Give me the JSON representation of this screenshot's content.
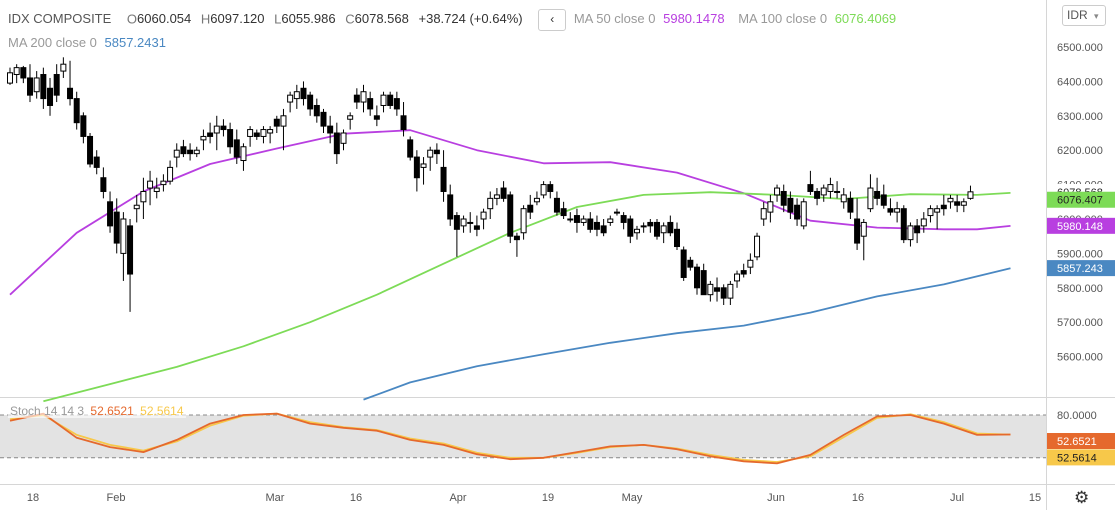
{
  "header": {
    "symbol": "IDX COMPOSITE",
    "open_k": "O",
    "open": "6060.054",
    "high_k": "H",
    "high": "6097.120",
    "low_k": "L",
    "low": "6055.986",
    "close_k": "C",
    "close": "6078.568",
    "change": "+38.724 (+0.64%)",
    "nav_icon": "chevron-left-icon",
    "nav_glyph": "‹",
    "ma50_label": "MA 50 close 0",
    "ma50_value": "5980.1478",
    "ma50_color": "#b83fe0",
    "ma100_label": "MA 100 close 0",
    "ma100_value": "6076.4069",
    "ma100_color": "#7ddb57",
    "ma200_label": "MA 200 close 0",
    "ma200_value": "5857.2431",
    "ma200_color": "#4a88c2"
  },
  "currency": "IDR",
  "stoch": {
    "label": "Stoch 14 14 3",
    "k_value": "52.6521",
    "k_color": "#e5692d",
    "d_value": "52.5614",
    "d_color": "#f7c84a"
  },
  "settings_icon": "gear-icon",
  "chart_data": [
    {
      "type": "candlestick",
      "title": "IDX COMPOSITE",
      "ylim": [
        5480,
        6560
      ],
      "y_ticks": [
        "6500.000",
        "6400.000",
        "6300.000",
        "6200.000",
        "6100.000",
        "6000.000",
        "5900.000",
        "5800.000",
        "5700.000",
        "5600.000"
      ],
      "x_ticks": [
        "18",
        "Feb",
        "Mar",
        "16",
        "Apr",
        "19",
        "May",
        "Jun",
        "16",
        "Jul",
        "15"
      ],
      "last_price": "6078.568",
      "candles_ohlc": [
        [
          6395,
          6440,
          6390,
          6425
        ],
        [
          6420,
          6450,
          6395,
          6440
        ],
        [
          6440,
          6445,
          6395,
          6410
        ],
        [
          6410,
          6450,
          6340,
          6360
        ],
        [
          6370,
          6430,
          6350,
          6410
        ],
        [
          6420,
          6440,
          6320,
          6350
        ],
        [
          6380,
          6410,
          6300,
          6330
        ],
        [
          6420,
          6450,
          6340,
          6360
        ],
        [
          6430,
          6470,
          6410,
          6450
        ],
        [
          6380,
          6460,
          6330,
          6350
        ],
        [
          6350,
          6370,
          6260,
          6280
        ],
        [
          6300,
          6310,
          6220,
          6240
        ],
        [
          6240,
          6250,
          6150,
          6160
        ],
        [
          6180,
          6200,
          6130,
          6150
        ],
        [
          6120,
          6150,
          6060,
          6080
        ],
        [
          6050,
          6080,
          5960,
          5980
        ],
        [
          6020,
          6060,
          5900,
          5930
        ],
        [
          5900,
          6020,
          5820,
          6000
        ],
        [
          5980,
          6000,
          5730,
          5840
        ],
        [
          6030,
          6070,
          5990,
          6040
        ],
        [
          6050,
          6120,
          6000,
          6080
        ],
        [
          6090,
          6140,
          6040,
          6110
        ],
        [
          6080,
          6120,
          6060,
          6090
        ],
        [
          6100,
          6130,
          6080,
          6110
        ],
        [
          6110,
          6170,
          6100,
          6150
        ],
        [
          6180,
          6220,
          6150,
          6200
        ],
        [
          6210,
          6230,
          6180,
          6190
        ],
        [
          6200,
          6220,
          6170,
          6190
        ],
        [
          6190,
          6210,
          6180,
          6200
        ],
        [
          6230,
          6260,
          6200,
          6240
        ],
        [
          6250,
          6280,
          6220,
          6240
        ],
        [
          6250,
          6300,
          6200,
          6270
        ],
        [
          6270,
          6290,
          6240,
          6260
        ],
        [
          6260,
          6280,
          6190,
          6210
        ],
        [
          6230,
          6260,
          6160,
          6180
        ],
        [
          6170,
          6220,
          6140,
          6210
        ],
        [
          6240,
          6270,
          6210,
          6260
        ],
        [
          6250,
          6260,
          6230,
          6240
        ],
        [
          6240,
          6270,
          6220,
          6260
        ],
        [
          6250,
          6270,
          6220,
          6260
        ],
        [
          6290,
          6300,
          6250,
          6270
        ],
        [
          6270,
          6320,
          6200,
          6300
        ],
        [
          6340,
          6370,
          6310,
          6360
        ],
        [
          6350,
          6390,
          6320,
          6370
        ],
        [
          6380,
          6400,
          6330,
          6350
        ],
        [
          6360,
          6370,
          6300,
          6320
        ],
        [
          6330,
          6350,
          6280,
          6300
        ],
        [
          6310,
          6320,
          6250,
          6270
        ],
        [
          6270,
          6300,
          6220,
          6250
        ],
        [
          6250,
          6280,
          6160,
          6190
        ],
        [
          6220,
          6260,
          6200,
          6250
        ],
        [
          6290,
          6310,
          6260,
          6300
        ],
        [
          6360,
          6380,
          6320,
          6340
        ],
        [
          6340,
          6390,
          6310,
          6370
        ],
        [
          6350,
          6370,
          6300,
          6320
        ],
        [
          6300,
          6330,
          6270,
          6290
        ],
        [
          6330,
          6370,
          6310,
          6360
        ],
        [
          6360,
          6370,
          6320,
          6330
        ],
        [
          6350,
          6370,
          6300,
          6320
        ],
        [
          6300,
          6340,
          6240,
          6260
        ],
        [
          6230,
          6240,
          6170,
          6180
        ],
        [
          6180,
          6200,
          6080,
          6120
        ],
        [
          6150,
          6180,
          6100,
          6160
        ],
        [
          6180,
          6210,
          6140,
          6200
        ],
        [
          6200,
          6220,
          6160,
          6190
        ],
        [
          6150,
          6200,
          6050,
          6080
        ],
        [
          6070,
          6100,
          5980,
          6000
        ],
        [
          6010,
          6020,
          5890,
          5970
        ],
        [
          5980,
          6010,
          5960,
          6000
        ],
        [
          5990,
          6020,
          5960,
          5990
        ],
        [
          5980,
          6010,
          5950,
          5970
        ],
        [
          6000,
          6030,
          5970,
          6020
        ],
        [
          6030,
          6080,
          6000,
          6060
        ],
        [
          6060,
          6090,
          6040,
          6070
        ],
        [
          6090,
          6110,
          6050,
          6060
        ],
        [
          6070,
          6080,
          5930,
          5950
        ],
        [
          5950,
          5960,
          5890,
          5940
        ],
        [
          5960,
          6040,
          5940,
          6030
        ],
        [
          6040,
          6070,
          6000,
          6020
        ],
        [
          6050,
          6080,
          6040,
          6060
        ],
        [
          6070,
          6110,
          6060,
          6100
        ],
        [
          6100,
          6110,
          6060,
          6080
        ],
        [
          6060,
          6080,
          6010,
          6020
        ],
        [
          6030,
          6050,
          6000,
          6010
        ],
        [
          6000,
          6020,
          5990,
          6000
        ],
        [
          6010,
          6030,
          5960,
          5990
        ],
        [
          5990,
          6010,
          5980,
          6000
        ],
        [
          6000,
          6020,
          5960,
          5970
        ],
        [
          5990,
          6010,
          5950,
          5970
        ],
        [
          5980,
          6000,
          5950,
          5960
        ],
        [
          5990,
          6010,
          5980,
          6000
        ],
        [
          6020,
          6030,
          6010,
          6020
        ],
        [
          6010,
          6020,
          5970,
          5990
        ],
        [
          6000,
          6010,
          5930,
          5950
        ],
        [
          5960,
          5980,
          5940,
          5970
        ],
        [
          5980,
          5990,
          5960,
          5980
        ],
        [
          5990,
          6000,
          5960,
          5980
        ],
        [
          5990,
          6000,
          5940,
          5950
        ],
        [
          5960,
          5990,
          5930,
          5980
        ],
        [
          5990,
          6010,
          5950,
          5960
        ],
        [
          5970,
          5990,
          5910,
          5920
        ],
        [
          5910,
          5920,
          5820,
          5830
        ],
        [
          5880,
          5890,
          5850,
          5860
        ],
        [
          5860,
          5870,
          5780,
          5800
        ],
        [
          5850,
          5870,
          5780,
          5780
        ],
        [
          5780,
          5820,
          5760,
          5810
        ],
        [
          5800,
          5830,
          5760,
          5790
        ],
        [
          5800,
          5810,
          5750,
          5770
        ],
        [
          5770,
          5820,
          5750,
          5810
        ],
        [
          5820,
          5850,
          5800,
          5840
        ],
        [
          5850,
          5870,
          5830,
          5840
        ],
        [
          5860,
          5900,
          5840,
          5880
        ],
        [
          5890,
          5960,
          5880,
          5950
        ],
        [
          6000,
          6050,
          5980,
          6030
        ],
        [
          6020,
          6070,
          5990,
          6050
        ],
        [
          6070,
          6100,
          6050,
          6090
        ],
        [
          6080,
          6100,
          6020,
          6040
        ],
        [
          6060,
          6080,
          6000,
          6020
        ],
        [
          6040,
          6060,
          5980,
          6000
        ],
        [
          5980,
          6060,
          5970,
          6050
        ],
        [
          6100,
          6140,
          6070,
          6080
        ],
        [
          6080,
          6090,
          6040,
          6060
        ],
        [
          6070,
          6100,
          6050,
          6090
        ],
        [
          6080,
          6120,
          6060,
          6100
        ],
        [
          6080,
          6110,
          6060,
          6080
        ],
        [
          6050,
          6090,
          6030,
          6070
        ],
        [
          6060,
          6080,
          6000,
          6020
        ],
        [
          6000,
          6060,
          5910,
          5930
        ],
        [
          5950,
          6000,
          5880,
          5990
        ],
        [
          6030,
          6130,
          6020,
          6090
        ],
        [
          6080,
          6120,
          6040,
          6060
        ],
        [
          6070,
          6100,
          6030,
          6040
        ],
        [
          6030,
          6060,
          6010,
          6020
        ],
        [
          6020,
          6050,
          5990,
          6030
        ],
        [
          6030,
          6040,
          5930,
          5940
        ],
        [
          5940,
          5990,
          5920,
          5980
        ],
        [
          5980,
          6000,
          5930,
          5960
        ],
        [
          5980,
          6020,
          5960,
          6000
        ],
        [
          6010,
          6040,
          5990,
          6030
        ],
        [
          6020,
          6040,
          5970,
          6030
        ],
        [
          6040,
          6070,
          6010,
          6030
        ],
        [
          6050,
          6070,
          6030,
          6060
        ],
        [
          6050,
          6070,
          6020,
          6040
        ],
        [
          6040,
          6060,
          6020,
          6050
        ],
        [
          6060,
          6097,
          6056,
          6079
        ]
      ],
      "series": [
        {
          "name": "MA 50 close 0",
          "color": "#b83fe0",
          "x": [
            0,
            10,
            20,
            30,
            40,
            50,
            60,
            70,
            80,
            90,
            100,
            110,
            120,
            130,
            140,
            145,
            150
          ],
          "values": [
            5780,
            5960,
            6080,
            6160,
            6205,
            6248,
            6258,
            6200,
            6162,
            6165,
            6135,
            6075,
            5995,
            5975,
            5970,
            5970,
            5980
          ]
        },
        {
          "name": "MA 100 close 0",
          "color": "#7ddb57",
          "x": [
            5,
            15,
            25,
            35,
            45,
            55,
            65,
            75,
            85,
            95,
            105,
            115,
            125,
            135,
            145,
            150
          ],
          "values": [
            5470,
            5520,
            5570,
            5630,
            5700,
            5780,
            5870,
            5960,
            6035,
            6070,
            6078,
            6070,
            6058,
            6072,
            6070,
            6076
          ]
        },
        {
          "name": "MA 200 close 0",
          "color": "#4a88c2",
          "x": [
            53,
            60,
            70,
            80,
            90,
            100,
            110,
            120,
            130,
            140,
            150
          ],
          "values": [
            5475,
            5525,
            5572,
            5607,
            5640,
            5668,
            5690,
            5728,
            5775,
            5810,
            5857
          ]
        }
      ]
    },
    {
      "type": "line",
      "title": "Stoch 14 14 3",
      "ylim": [
        0,
        100
      ],
      "y_ticks": [
        "80.0000"
      ],
      "reference_lines": [
        80,
        20
      ],
      "series": [
        {
          "name": "K",
          "color": "#e5692d",
          "x": [
            0,
            5,
            10,
            15,
            20,
            25,
            30,
            35,
            40,
            45,
            50,
            55,
            60,
            65,
            70,
            75,
            80,
            85,
            90,
            95,
            100,
            105,
            110,
            115,
            120,
            125,
            130,
            135,
            140,
            145,
            150
          ],
          "values": [
            72,
            82,
            48,
            35,
            28,
            45,
            68,
            80,
            82,
            68,
            62,
            58,
            45,
            38,
            25,
            18,
            20,
            28,
            36,
            38,
            32,
            22,
            15,
            12,
            24,
            52,
            78,
            80,
            68,
            52,
            52.65
          ]
        },
        {
          "name": "D",
          "color": "#f7c84a",
          "x": [
            0,
            5,
            10,
            15,
            20,
            25,
            30,
            35,
            40,
            45,
            50,
            55,
            60,
            65,
            70,
            75,
            80,
            85,
            90,
            95,
            100,
            105,
            110,
            115,
            120,
            125,
            130,
            135,
            140,
            145,
            150
          ],
          "values": [
            74,
            80,
            52,
            38,
            30,
            43,
            65,
            79,
            82,
            70,
            63,
            59,
            47,
            40,
            27,
            20,
            20,
            27,
            35,
            38,
            33,
            24,
            17,
            14,
            22,
            49,
            76,
            81,
            70,
            54,
            52.56
          ]
        }
      ]
    }
  ]
}
